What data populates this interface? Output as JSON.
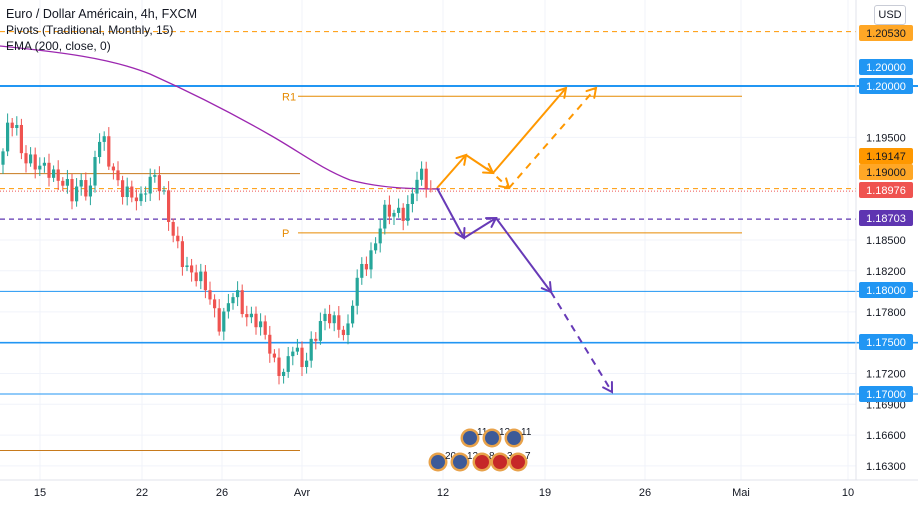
{
  "legend": {
    "title": "Euro / Dollar Américain, 4h, FXCM",
    "pivots": "Pivots (Traditional, Monthly, 15)",
    "ema": "EMA (200, close, 0)"
  },
  "currency_button": "USD",
  "chart_data": {
    "type": "candlestick",
    "symbol": "EURUSD",
    "timeframe": "4h",
    "y_axis": {
      "ticks": [
        1.195,
        1.185,
        1.182,
        1.178,
        1.172,
        1.169,
        1.166,
        1.163
      ],
      "range": [
        1.1622,
        1.2087
      ]
    },
    "x_axis": {
      "ticks": [
        {
          "label": "15",
          "pos": 40
        },
        {
          "label": "22",
          "pos": 142
        },
        {
          "label": "26",
          "pos": 222
        },
        {
          "label": "Avr",
          "pos": 302
        },
        {
          "label": "12",
          "pos": 443
        },
        {
          "label": "19",
          "pos": 545
        },
        {
          "label": "26",
          "pos": 645
        },
        {
          "label": "Mai",
          "pos": 741
        },
        {
          "label": "10",
          "pos": 848
        }
      ]
    },
    "price_badges": [
      {
        "value": "1.20530",
        "bg": "#ffa726",
        "fg": "#131722"
      },
      {
        "value": "1.20000",
        "bg": "#2196f3",
        "fg": "#ffffff"
      },
      {
        "value": "1.20000",
        "bg": "#2196f3",
        "fg": "#ffffff"
      },
      {
        "value": "1.19147",
        "bg": "#ff9800",
        "fg": "#131722"
      },
      {
        "value": "1.19000",
        "bg": "#ffa726",
        "fg": "#131722"
      },
      {
        "value": "1.18976",
        "bg": "#ef5350",
        "fg": "#ffffff"
      },
      {
        "value": "1.18703",
        "bg": "#5e35b1",
        "fg": "#ffffff"
      },
      {
        "value": "1.18000",
        "bg": "#2196f3",
        "fg": "#ffffff"
      },
      {
        "value": "1.17500",
        "bg": "#2196f3",
        "fg": "#ffffff"
      },
      {
        "value": "1.17000",
        "bg": "#2196f3",
        "fg": "#ffffff"
      }
    ],
    "horizontal_lines": [
      {
        "price": 1.2053,
        "color": "#ff9800",
        "style": "dashed"
      },
      {
        "price": 1.2,
        "color": "#2196f3",
        "style": "solid"
      },
      {
        "price": 1.199,
        "color": "#e68a00",
        "style": "solid",
        "label": "R1"
      },
      {
        "price": 1.19147,
        "color": "#c77a1c",
        "style": "solid"
      },
      {
        "price": 1.19,
        "color": "#ff9800",
        "style": "dashed"
      },
      {
        "price": 1.18976,
        "color": "#ef5350",
        "style": "dotted"
      },
      {
        "price": 1.18703,
        "color": "#5e35b1",
        "style": "dashed"
      },
      {
        "price": 1.1857,
        "color": "#e68a00",
        "style": "solid",
        "label": "P"
      },
      {
        "price": 1.18,
        "color": "#2196f3",
        "style": "solid"
      },
      {
        "price": 1.175,
        "color": "#2196f3",
        "style": "solid"
      },
      {
        "price": 1.17,
        "color": "#2196f3",
        "style": "solid"
      },
      {
        "price": 1.1645,
        "color": "#c77a1c",
        "style": "solid"
      }
    ],
    "pivot_labels": [
      "R1",
      "P"
    ],
    "scenarios": [
      {
        "name": "bullish",
        "color": "#ff9800"
      },
      {
        "name": "bearish",
        "color": "#673ab7"
      }
    ],
    "events": {
      "upper_row": [
        "11",
        "12",
        "11"
      ],
      "lower_row": [
        "20",
        "12",
        "8",
        "3",
        "7"
      ]
    }
  }
}
